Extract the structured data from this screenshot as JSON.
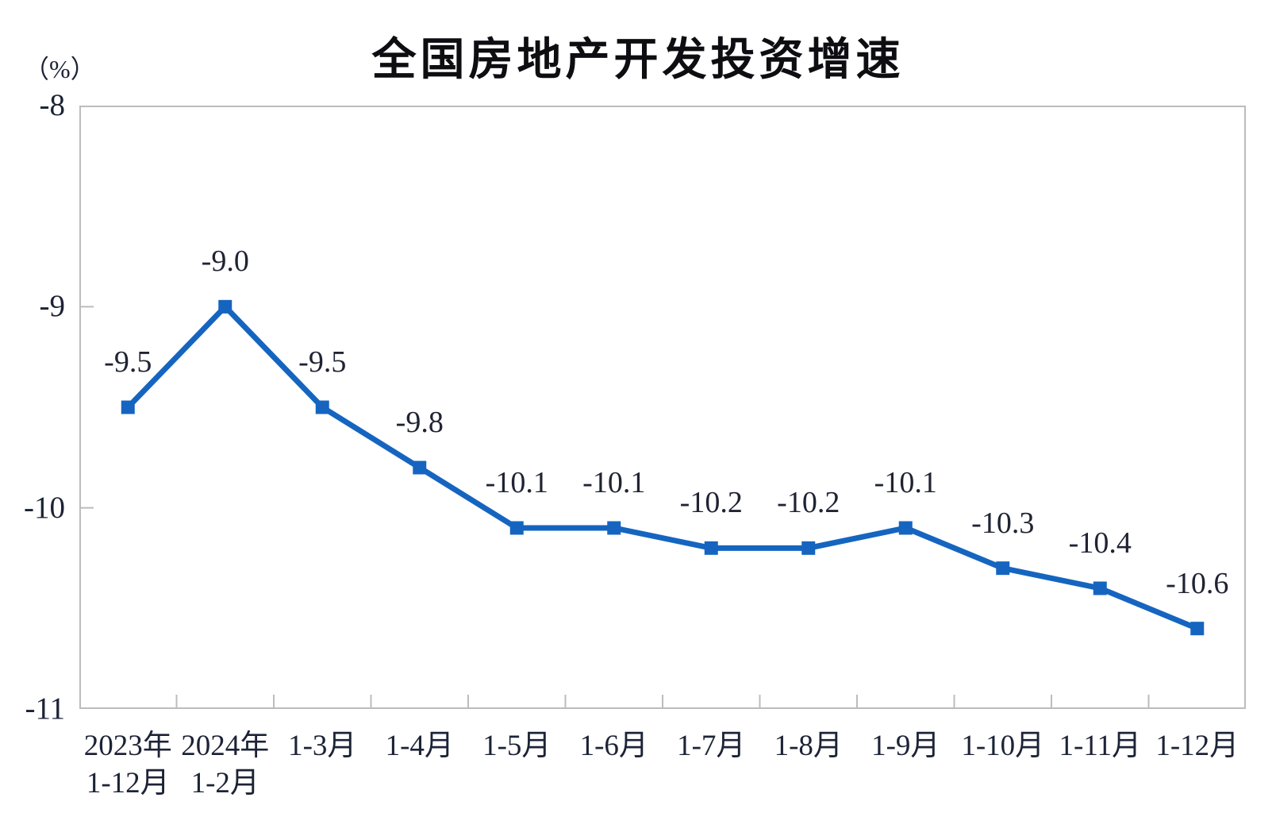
{
  "chart_data": {
    "type": "line",
    "title": "全国房地产开发投资增速",
    "unit_label": "（%）",
    "categories": [
      "2023年\n1-12月",
      "2024年\n1-2月",
      "1-3月",
      "1-4月",
      "1-5月",
      "1-6月",
      "1-7月",
      "1-8月",
      "1-9月",
      "1-10月",
      "1-11月",
      "1-12月"
    ],
    "series": [
      {
        "name": "全国房地产开发投资增速",
        "values": [
          -9.5,
          -9.0,
          -9.5,
          -9.8,
          -10.1,
          -10.1,
          -10.2,
          -10.2,
          -10.1,
          -10.3,
          -10.4,
          -10.6
        ],
        "data_labels": [
          "-9.5",
          "-9.0",
          "-9.5",
          "-9.8",
          "-10.1",
          "-10.1",
          "-10.2",
          "-10.2",
          "-10.1",
          "-10.3",
          "-10.4",
          "-10.6"
        ]
      }
    ],
    "ylim": [
      -11,
      -8
    ],
    "yticks": [
      -8,
      -9,
      -10,
      -11
    ],
    "ytick_labels": [
      "-8",
      "-9",
      "-10",
      "-11"
    ],
    "inner_ytick_values": [
      -9,
      -10
    ],
    "grid": false,
    "legend_position": "none",
    "marker": "square",
    "colors": {
      "line": "#1565c0",
      "marker": "#1565c0",
      "axis_border": "#bcbcbc",
      "tick": "#bcbcbc",
      "label_text": "#1f2333",
      "title_text": "#0d0d12"
    }
  }
}
